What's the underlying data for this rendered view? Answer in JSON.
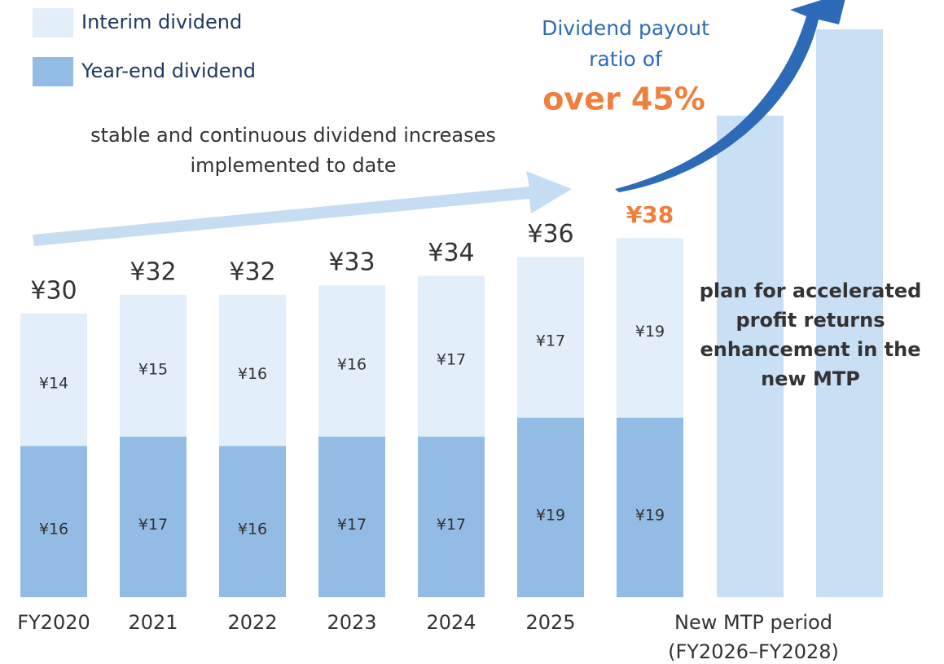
{
  "chart_data": {
    "type": "stacked_bar",
    "categories": [
      "FY2020",
      "2021",
      "2022",
      "2023",
      "2024",
      "2025",
      null
    ],
    "group_label": [
      "New MTP period",
      "(FY2026–FY2028)"
    ],
    "series": [
      {
        "name": "Year-end dividend",
        "color": "#92bce3",
        "values": [
          16,
          17,
          16,
          17,
          17,
          19,
          19
        ],
        "value_labels": [
          "¥16",
          "¥17",
          "¥16",
          "¥17",
          "¥17",
          "¥19",
          "¥19"
        ]
      },
      {
        "name": "Interim dividend",
        "color": "#e2eef9",
        "values": [
          14,
          15,
          16,
          16,
          17,
          17,
          19
        ],
        "value_labels": [
          "¥14",
          "¥15",
          "¥16",
          "¥16",
          "¥17",
          "¥17",
          "¥19"
        ]
      }
    ],
    "totals": [
      30,
      32,
      32,
      33,
      34,
      36,
      38
    ],
    "total_labels": [
      "¥30",
      "¥32",
      "¥32",
      "¥33",
      "¥34",
      "¥36",
      "¥38"
    ],
    "highlight_index": 6,
    "highlight_color": "#f07f3c",
    "annotations": {
      "trend": [
        "stable and continuous dividend increases",
        "implemented to date"
      ],
      "payout": [
        "Dividend payout",
        "ratio of"
      ],
      "payout_emphasis": "over 45%",
      "plan": [
        "plan for accelerated",
        "profit returns",
        "enhancement in the",
        "new MTP"
      ]
    }
  }
}
